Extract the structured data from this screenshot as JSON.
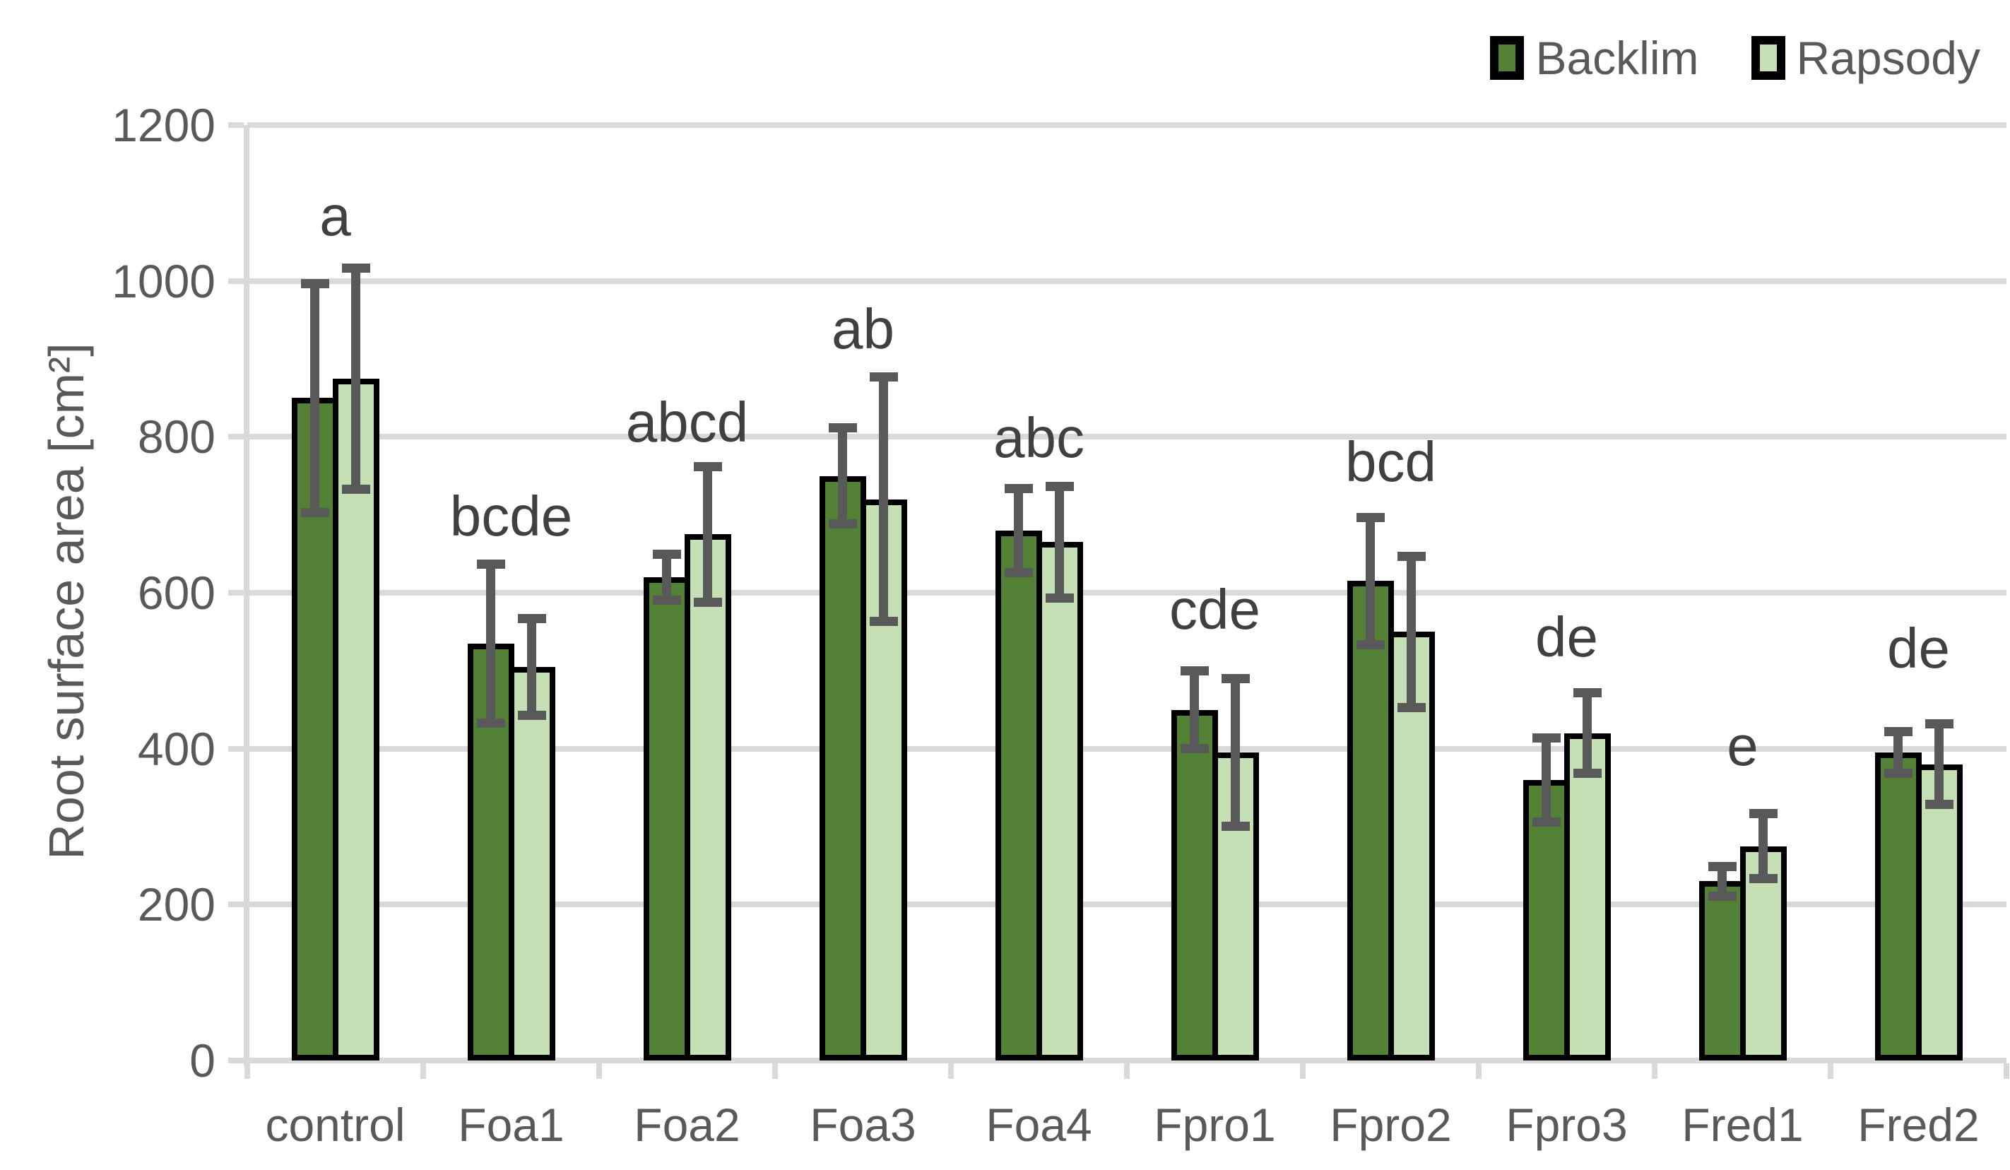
{
  "chart_data": {
    "type": "bar",
    "title": "",
    "xlabel": "",
    "ylabel": "Root surface area [cm²]",
    "ylim": [
      0,
      1200
    ],
    "ytick_step": 200,
    "yticks": [
      0,
      200,
      400,
      600,
      800,
      1000,
      1200
    ],
    "grid": "horizontal",
    "legend_position": "top-right",
    "categories": [
      "control",
      "Foa1",
      "Foa2",
      "Foa3",
      "Foa4",
      "Fpro1",
      "Fpro2",
      "Fpro3",
      "Fred1",
      "Fred2"
    ],
    "series": [
      {
        "name": "Backlim",
        "color": "#538135",
        "values": [
          850,
          535,
          620,
          750,
          680,
          450,
          615,
          360,
          230,
          395
        ],
        "errors": [
          150,
          105,
          33,
          65,
          57,
          53,
          85,
          57,
          22,
          30
        ]
      },
      {
        "name": "Rapsody",
        "color": "#C5E0B4",
        "values": [
          875,
          505,
          675,
          720,
          665,
          395,
          550,
          420,
          275,
          380
        ],
        "errors": [
          145,
          65,
          90,
          160,
          75,
          98,
          100,
          55,
          45,
          55
        ]
      }
    ],
    "significance_letters": [
      {
        "category": "control",
        "letter": "a",
        "y": 1045
      },
      {
        "category": "Foa1",
        "letter": "bcde",
        "y": 660
      },
      {
        "category": "Foa2",
        "letter": "abcd",
        "y": 780
      },
      {
        "category": "Foa3",
        "letter": "ab",
        "y": 900
      },
      {
        "category": "Foa4",
        "letter": "abc",
        "y": 760
      },
      {
        "category": "Fpro1",
        "letter": "cde",
        "y": 540
      },
      {
        "category": "Fpro2",
        "letter": "bcd",
        "y": 730
      },
      {
        "category": "Fpro3",
        "letter": "de",
        "y": 505
      },
      {
        "category": "Fred1",
        "letter": "e",
        "y": 365
      },
      {
        "category": "Fred2",
        "letter": "de",
        "y": 490
      }
    ]
  },
  "colors": {
    "backlim_fill": "#538135",
    "rapsody_fill": "#C5E0B4",
    "bar_border": "#000000",
    "gridline": "#D9D9D9",
    "error_bar": "#595959",
    "axis_text": "#595959",
    "letter_text": "#404040",
    "background": "#FFFFFF"
  }
}
